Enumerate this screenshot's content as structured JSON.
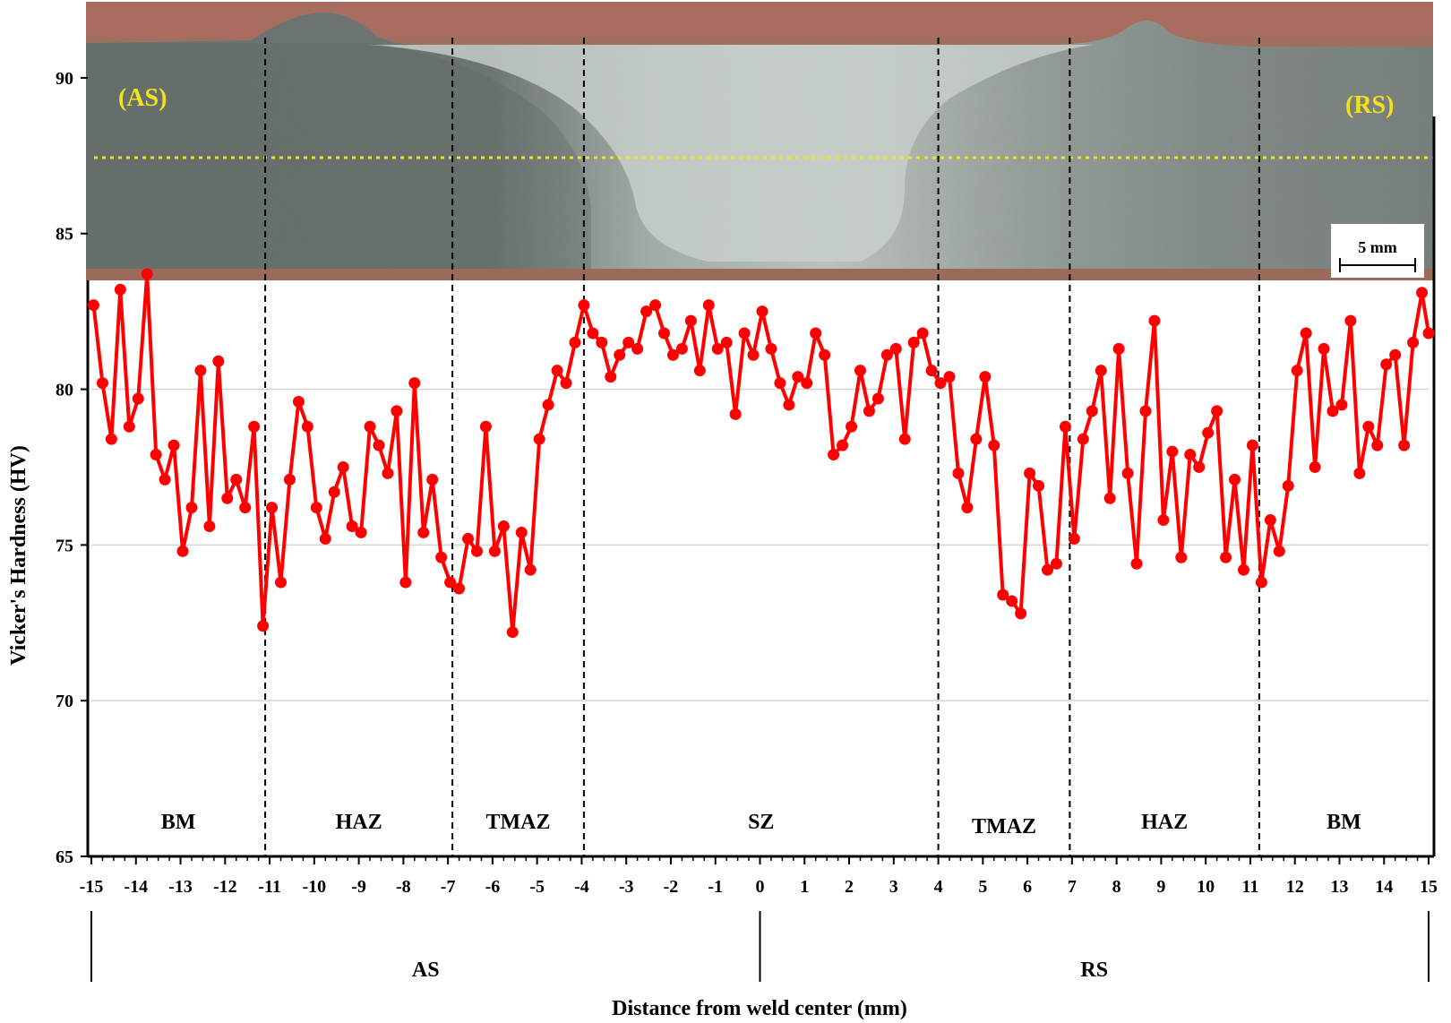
{
  "chart_data": {
    "type": "line",
    "xlabel": "Distance from weld center (mm)",
    "ylabel": "Vicker's Hardness (HV)",
    "xlim": [
      -15,
      15
    ],
    "ylim": [
      65,
      92.5
    ],
    "x_ticks": [
      -15,
      -14,
      -13,
      -12,
      -11,
      -10,
      -9,
      -8,
      -7,
      -6,
      -5,
      -4,
      -3,
      -2,
      -1,
      0,
      1,
      2,
      3,
      4,
      5,
      6,
      7,
      8,
      9,
      10,
      11,
      12,
      13,
      14,
      15
    ],
    "x_tick_labels": [
      "-15",
      "-14",
      "-13",
      "-12",
      "-11",
      "-10",
      "-9",
      "-8",
      "-7",
      "-6",
      "-5",
      "-4",
      "-3",
      "-2",
      "-1",
      "0",
      "1",
      "2",
      "3",
      "4",
      "5",
      "6",
      "7",
      "8",
      "9",
      "10",
      "11",
      "12",
      "13",
      "14",
      "15"
    ],
    "y_ticks": [
      65,
      70,
      75,
      80,
      85,
      90
    ],
    "y_tick_labels": [
      "65",
      "70",
      "75",
      "80",
      "85",
      "90"
    ],
    "grid": "horizontal",
    "series_color": "#ff0000",
    "series": [
      {
        "points": [
          [
            -14.95,
            82.7
          ],
          [
            -14.75,
            80.2
          ],
          [
            -14.55,
            78.4
          ],
          [
            -14.35,
            83.2
          ],
          [
            -14.15,
            78.8
          ],
          [
            -13.95,
            79.7
          ],
          [
            -13.75,
            83.7
          ],
          [
            -13.55,
            77.9
          ],
          [
            -13.35,
            77.1
          ],
          [
            -13.15,
            78.2
          ],
          [
            -12.95,
            74.8
          ],
          [
            -12.75,
            76.2
          ],
          [
            -12.55,
            80.6
          ],
          [
            -12.35,
            75.6
          ],
          [
            -12.15,
            80.9
          ],
          [
            -11.95,
            76.5
          ],
          [
            -11.75,
            77.1
          ],
          [
            -11.55,
            76.2
          ],
          [
            -11.35,
            78.8
          ],
          [
            -11.15,
            72.4
          ],
          [
            -10.95,
            76.2
          ],
          [
            -10.75,
            73.8
          ],
          [
            -10.55,
            77.1
          ],
          [
            -10.35,
            79.6
          ],
          [
            -10.15,
            78.8
          ],
          [
            -9.95,
            76.2
          ],
          [
            -9.75,
            75.2
          ],
          [
            -9.55,
            76.7
          ],
          [
            -9.35,
            77.5
          ],
          [
            -9.15,
            75.6
          ],
          [
            -8.95,
            75.4
          ],
          [
            -8.75,
            78.8
          ],
          [
            -8.55,
            78.2
          ],
          [
            -8.35,
            77.3
          ],
          [
            -8.15,
            79.3
          ],
          [
            -7.95,
            73.8
          ],
          [
            -7.75,
            80.2
          ],
          [
            -7.55,
            75.4
          ],
          [
            -7.35,
            77.1
          ],
          [
            -7.15,
            74.6
          ],
          [
            -6.95,
            73.8
          ],
          [
            -6.75,
            73.6
          ],
          [
            -6.55,
            75.2
          ],
          [
            -6.35,
            74.8
          ],
          [
            -6.15,
            78.8
          ],
          [
            -5.95,
            74.8
          ],
          [
            -5.75,
            75.6
          ],
          [
            -5.55,
            72.2
          ],
          [
            -5.35,
            75.4
          ],
          [
            -5.15,
            74.2
          ],
          [
            -4.95,
            78.4
          ],
          [
            -4.75,
            79.5
          ],
          [
            -4.55,
            80.6
          ],
          [
            -4.35,
            80.2
          ],
          [
            -4.15,
            81.5
          ],
          [
            -3.95,
            82.7
          ],
          [
            -3.75,
            81.8
          ],
          [
            -3.55,
            81.5
          ],
          [
            -3.35,
            80.4
          ],
          [
            -3.15,
            81.1
          ],
          [
            -2.95,
            81.5
          ],
          [
            -2.75,
            81.3
          ],
          [
            -2.55,
            82.5
          ],
          [
            -2.35,
            82.7
          ],
          [
            -2.15,
            81.8
          ],
          [
            -1.95,
            81.1
          ],
          [
            -1.75,
            81.3
          ],
          [
            -1.55,
            82.2
          ],
          [
            -1.35,
            80.6
          ],
          [
            -1.15,
            82.7
          ],
          [
            -0.95,
            81.3
          ],
          [
            -0.75,
            81.5
          ],
          [
            -0.55,
            79.2
          ],
          [
            -0.35,
            81.8
          ],
          [
            -0.15,
            81.1
          ],
          [
            0.05,
            82.5
          ],
          [
            0.25,
            81.3
          ],
          [
            0.45,
            80.2
          ],
          [
            0.65,
            79.5
          ],
          [
            0.85,
            80.4
          ],
          [
            1.05,
            80.2
          ],
          [
            1.25,
            81.8
          ],
          [
            1.45,
            81.1
          ],
          [
            1.65,
            77.9
          ],
          [
            1.85,
            78.2
          ],
          [
            2.05,
            78.8
          ],
          [
            2.25,
            80.6
          ],
          [
            2.45,
            79.3
          ],
          [
            2.65,
            79.7
          ],
          [
            2.85,
            81.1
          ],
          [
            3.05,
            81.3
          ],
          [
            3.25,
            78.4
          ],
          [
            3.45,
            81.5
          ],
          [
            3.65,
            81.8
          ],
          [
            3.85,
            80.6
          ],
          [
            4.05,
            80.2
          ],
          [
            4.25,
            80.4
          ],
          [
            4.45,
            77.3
          ],
          [
            4.65,
            76.2
          ],
          [
            4.85,
            78.4
          ],
          [
            5.05,
            80.4
          ],
          [
            5.25,
            78.2
          ],
          [
            5.45,
            73.4
          ],
          [
            5.65,
            73.2
          ],
          [
            5.85,
            72.8
          ],
          [
            6.05,
            77.3
          ],
          [
            6.25,
            76.9
          ],
          [
            6.45,
            74.2
          ],
          [
            6.65,
            74.4
          ],
          [
            6.85,
            78.8
          ],
          [
            7.05,
            75.2
          ],
          [
            7.25,
            78.4
          ],
          [
            7.45,
            79.3
          ],
          [
            7.65,
            80.6
          ],
          [
            7.85,
            76.5
          ],
          [
            8.05,
            81.3
          ],
          [
            8.25,
            77.3
          ],
          [
            8.45,
            74.4
          ],
          [
            8.65,
            79.3
          ],
          [
            8.85,
            82.2
          ],
          [
            9.05,
            75.8
          ],
          [
            9.25,
            78.0
          ],
          [
            9.45,
            74.6
          ],
          [
            9.65,
            77.9
          ],
          [
            9.85,
            77.5
          ],
          [
            10.05,
            78.6
          ],
          [
            10.25,
            79.3
          ],
          [
            10.45,
            74.6
          ],
          [
            10.65,
            77.1
          ],
          [
            10.85,
            74.2
          ],
          [
            11.05,
            78.2
          ],
          [
            11.25,
            73.8
          ],
          [
            11.45,
            75.8
          ],
          [
            11.65,
            74.8
          ],
          [
            11.85,
            76.9
          ],
          [
            12.05,
            80.6
          ],
          [
            12.25,
            81.8
          ],
          [
            12.45,
            77.5
          ],
          [
            12.65,
            81.3
          ],
          [
            12.85,
            79.3
          ],
          [
            13.05,
            79.5
          ],
          [
            13.25,
            82.2
          ],
          [
            13.45,
            77.3
          ],
          [
            13.65,
            78.8
          ],
          [
            13.85,
            78.2
          ],
          [
            14.05,
            80.8
          ],
          [
            14.25,
            81.1
          ],
          [
            14.45,
            78.2
          ],
          [
            14.65,
            81.5
          ],
          [
            14.85,
            83.1
          ],
          [
            15.0,
            81.8
          ]
        ]
      }
    ],
    "zones": [
      {
        "label": "BM",
        "from": -15,
        "to": -11.1
      },
      {
        "label": "HAZ",
        "from": -11.1,
        "to": -6.9
      },
      {
        "label": "TMAZ",
        "from": -6.9,
        "to": -3.95
      },
      {
        "label": "SZ",
        "from": -3.95,
        "to": 4.0
      },
      {
        "label": "TMAZ",
        "from": 4.0,
        "to": 6.95
      },
      {
        "label": "HAZ",
        "from": 6.95,
        "to": 11.2
      },
      {
        "label": "BM",
        "from": 11.2,
        "to": 15
      }
    ],
    "zone_boundaries": [
      -11.1,
      -6.9,
      -3.95,
      4.0,
      6.95,
      11.2
    ],
    "side_labels": [
      {
        "label": "AS",
        "from": -15,
        "to": 0
      },
      {
        "label": "RS",
        "from": 0,
        "to": 15
      }
    ]
  },
  "image_overlay": {
    "left_side_label": "(AS)",
    "right_side_label": "(RS)",
    "scale_bar_label": "5 mm",
    "measure_line_color": "#f2e21a"
  }
}
